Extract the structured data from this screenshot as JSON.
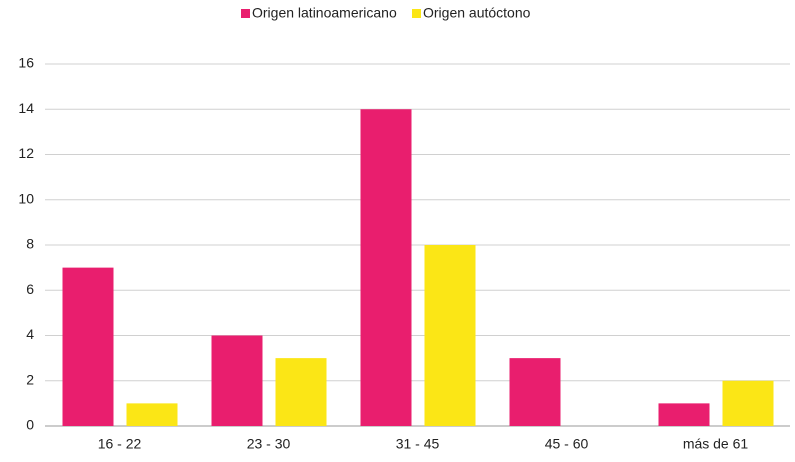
{
  "chart_data": {
    "type": "bar",
    "categories": [
      "16 - 22",
      "23 - 30",
      "31 - 45",
      "45 - 60",
      "más de 61"
    ],
    "series": [
      {
        "name": "Origen latinoamericano",
        "color": "#e91e6e",
        "values": [
          7,
          4,
          14,
          3,
          1
        ]
      },
      {
        "name": "Origen autóctono",
        "color": "#fbe616",
        "values": [
          1,
          3,
          8,
          0,
          2
        ]
      }
    ],
    "ylim": [
      0,
      16
    ],
    "yticks": [
      0,
      2,
      4,
      6,
      8,
      10,
      12,
      14,
      16
    ],
    "grid": true,
    "legend": "top"
  }
}
